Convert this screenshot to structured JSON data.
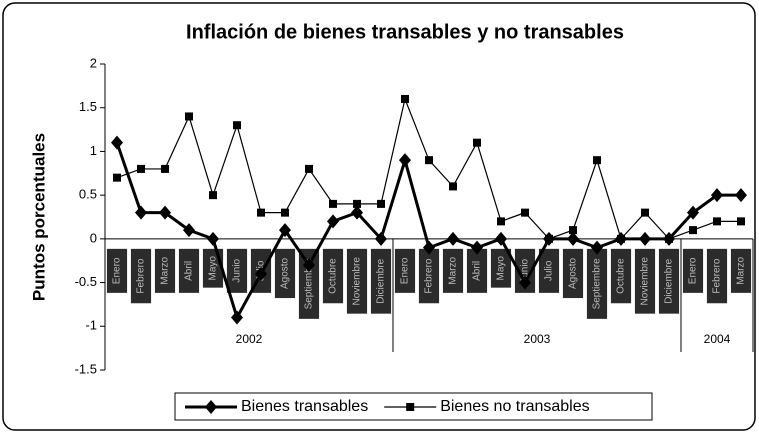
{
  "chart_data": {
    "type": "line",
    "title": "Inflación de bienes transables y no transables",
    "y_label": "Puntos porcentuales",
    "groups": [
      {
        "label": "2002",
        "categories": [
          "Enero",
          "Febrero",
          "Marzo",
          "Abril",
          "Mayo",
          "Junio",
          "Julio",
          "Agosto",
          "Septiembre",
          "Octubre",
          "Noviembre",
          "Diciembre"
        ]
      },
      {
        "label": "2003",
        "categories": [
          "Enero",
          "Febrero",
          "Marzo",
          "Abril",
          "Mayo",
          "Junio",
          "Julio",
          "Agosto",
          "Septiembre",
          "Octubre",
          "Noviembre",
          "Diciembre"
        ]
      },
      {
        "label": "2004",
        "categories": [
          "Enero",
          "Febrero",
          "Marzo"
        ]
      }
    ],
    "series": [
      {
        "name": "Bienes transables",
        "color": "#000000",
        "marker": "diamond",
        "values": [
          1.1,
          0.3,
          0.3,
          0.1,
          0.0,
          -0.9,
          -0.4,
          0.1,
          -0.3,
          0.2,
          0.3,
          0.0,
          0.9,
          -0.1,
          0.0,
          -0.1,
          0.0,
          -0.5,
          0.0,
          0.0,
          -0.1,
          0.0,
          0.0,
          0.0,
          0.3,
          0.5,
          0.5
        ]
      },
      {
        "name": "Bienes no transables",
        "color": "#000000",
        "marker": "square",
        "values": [
          0.7,
          0.8,
          0.8,
          1.4,
          0.5,
          1.3,
          0.3,
          0.3,
          0.8,
          0.4,
          0.4,
          0.4,
          1.6,
          0.9,
          0.6,
          1.1,
          0.2,
          0.3,
          0.0,
          0.1,
          0.9,
          0.0,
          0.3,
          0.0,
          0.1,
          0.2,
          0.2
        ]
      }
    ],
    "ylim": [
      -1.5,
      2
    ],
    "yticks": [
      -1.5,
      -1,
      -0.5,
      0,
      0.5,
      1,
      1.5,
      2
    ],
    "legend": "bottom"
  }
}
